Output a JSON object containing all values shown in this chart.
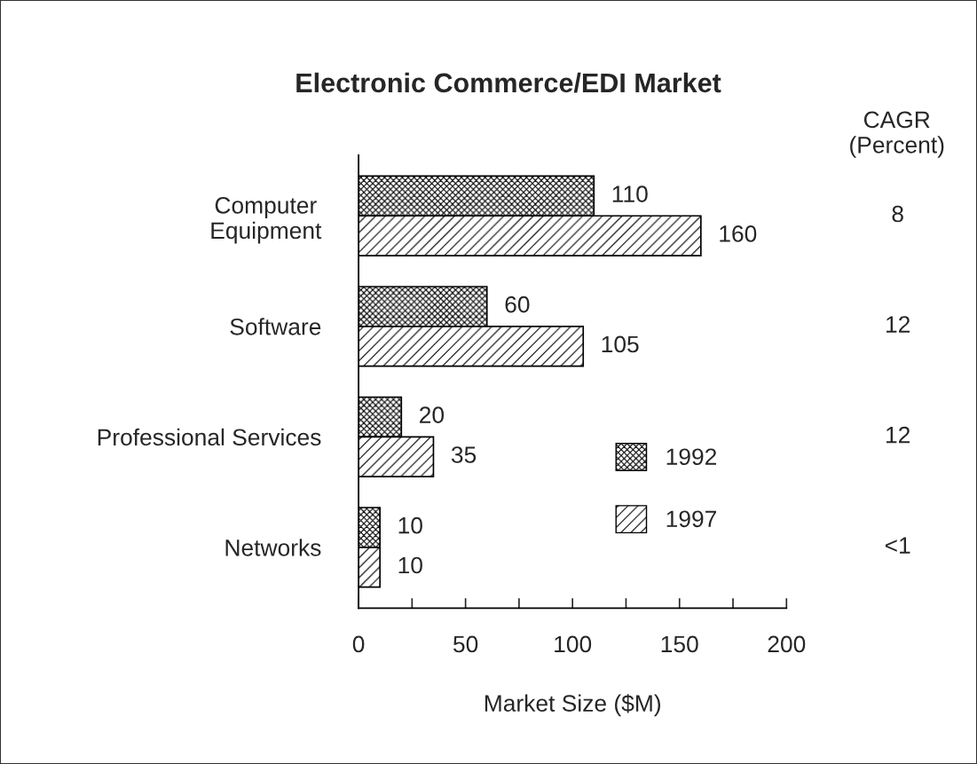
{
  "chart_data": {
    "type": "bar",
    "orientation": "horizontal",
    "title": "Electronic Commerce/EDI Market",
    "xlabel": "Market Size ($M)",
    "categories": [
      "Computer\nEquipment",
      "Software",
      "Professional Services",
      "Networks"
    ],
    "series": [
      {
        "name": "1992",
        "color": "#000000",
        "values": [
          110,
          60,
          20,
          10
        ]
      },
      {
        "name": "1997",
        "color": "#000000",
        "values": [
          160,
          105,
          35,
          10
        ]
      }
    ],
    "xlim": [
      0,
      200
    ],
    "xticks": [
      0,
      {
        "value": 25,
        "label": null
      },
      50,
      {
        "value": 75,
        "label": null
      },
      100,
      {
        "value": 125,
        "label": null
      },
      150,
      {
        "value": 175,
        "label": null
      },
      200
    ],
    "data_labels": true,
    "legend": "bottom",
    "grid": false,
    "annotations": [
      "CAGR\n(Percent)",
      "8",
      "12",
      "12",
      "<1"
    ]
  }
}
